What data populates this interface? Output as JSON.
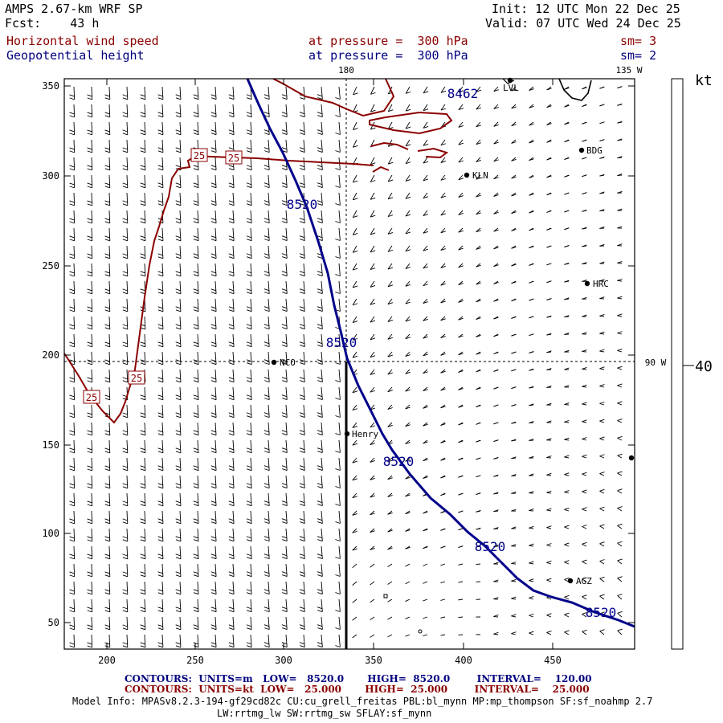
{
  "header": {
    "model": "AMPS 2.67-km WRF SP",
    "fcst": "Fcst:    43 h",
    "init": "Init: 12 UTC Mon 22 Dec 25",
    "valid": "Valid: 07 UTC Wed 24 Dec 25",
    "field1": "Horizontal wind speed",
    "field2": "Geopotential height",
    "level1": "at pressure =  300 hPa",
    "level2": "at pressure =  300 hPa",
    "sm1": "sm= 3",
    "sm2": "sm= 2"
  },
  "map": {
    "meridian_top": "180",
    "meridian_top_right": "135 W",
    "meridian_right": "90 W",
    "x_ticks": [
      "200",
      "250",
      "300",
      "350",
      "400",
      "450"
    ],
    "y_ticks": [
      "350",
      "300",
      "250",
      "200",
      "150",
      "100",
      "50"
    ],
    "height_labels": [
      "8462",
      "8520",
      "8520",
      "8520",
      "8520",
      "8520"
    ],
    "speed_labels": [
      "25",
      "25",
      "25",
      "25"
    ],
    "stations": [
      "LVL",
      "BDG",
      "KLN",
      "HRC",
      "NCO",
      "Henry",
      "AGZ"
    ]
  },
  "colorbar": {
    "unit": "kt",
    "value": "40"
  },
  "footer": {
    "contours1": "CONTOURS:  UNITS=m   LOW=   8520.0       HIGH=  8520.0        INTERVAL=    120.00",
    "contours2": "CONTOURS:  UNITS=kt  LOW=   25.000       HIGH=  25.000        INTERVAL=    25.000",
    "model_info": "Model Info: MPASv8.2.3-194-gf29cd82c CU:cu_grell_freitas PBL:bl_mynn MP:mp_thompson SF:sf_noahmp 2.7",
    "model_info2": "LW:rrtmg_lw SW:rrtmg_sw SFLAY:sf_mynn"
  },
  "colors": {
    "height_contour": "#00008b",
    "speed_contour": "#8b0000",
    "barb": "#000000"
  }
}
